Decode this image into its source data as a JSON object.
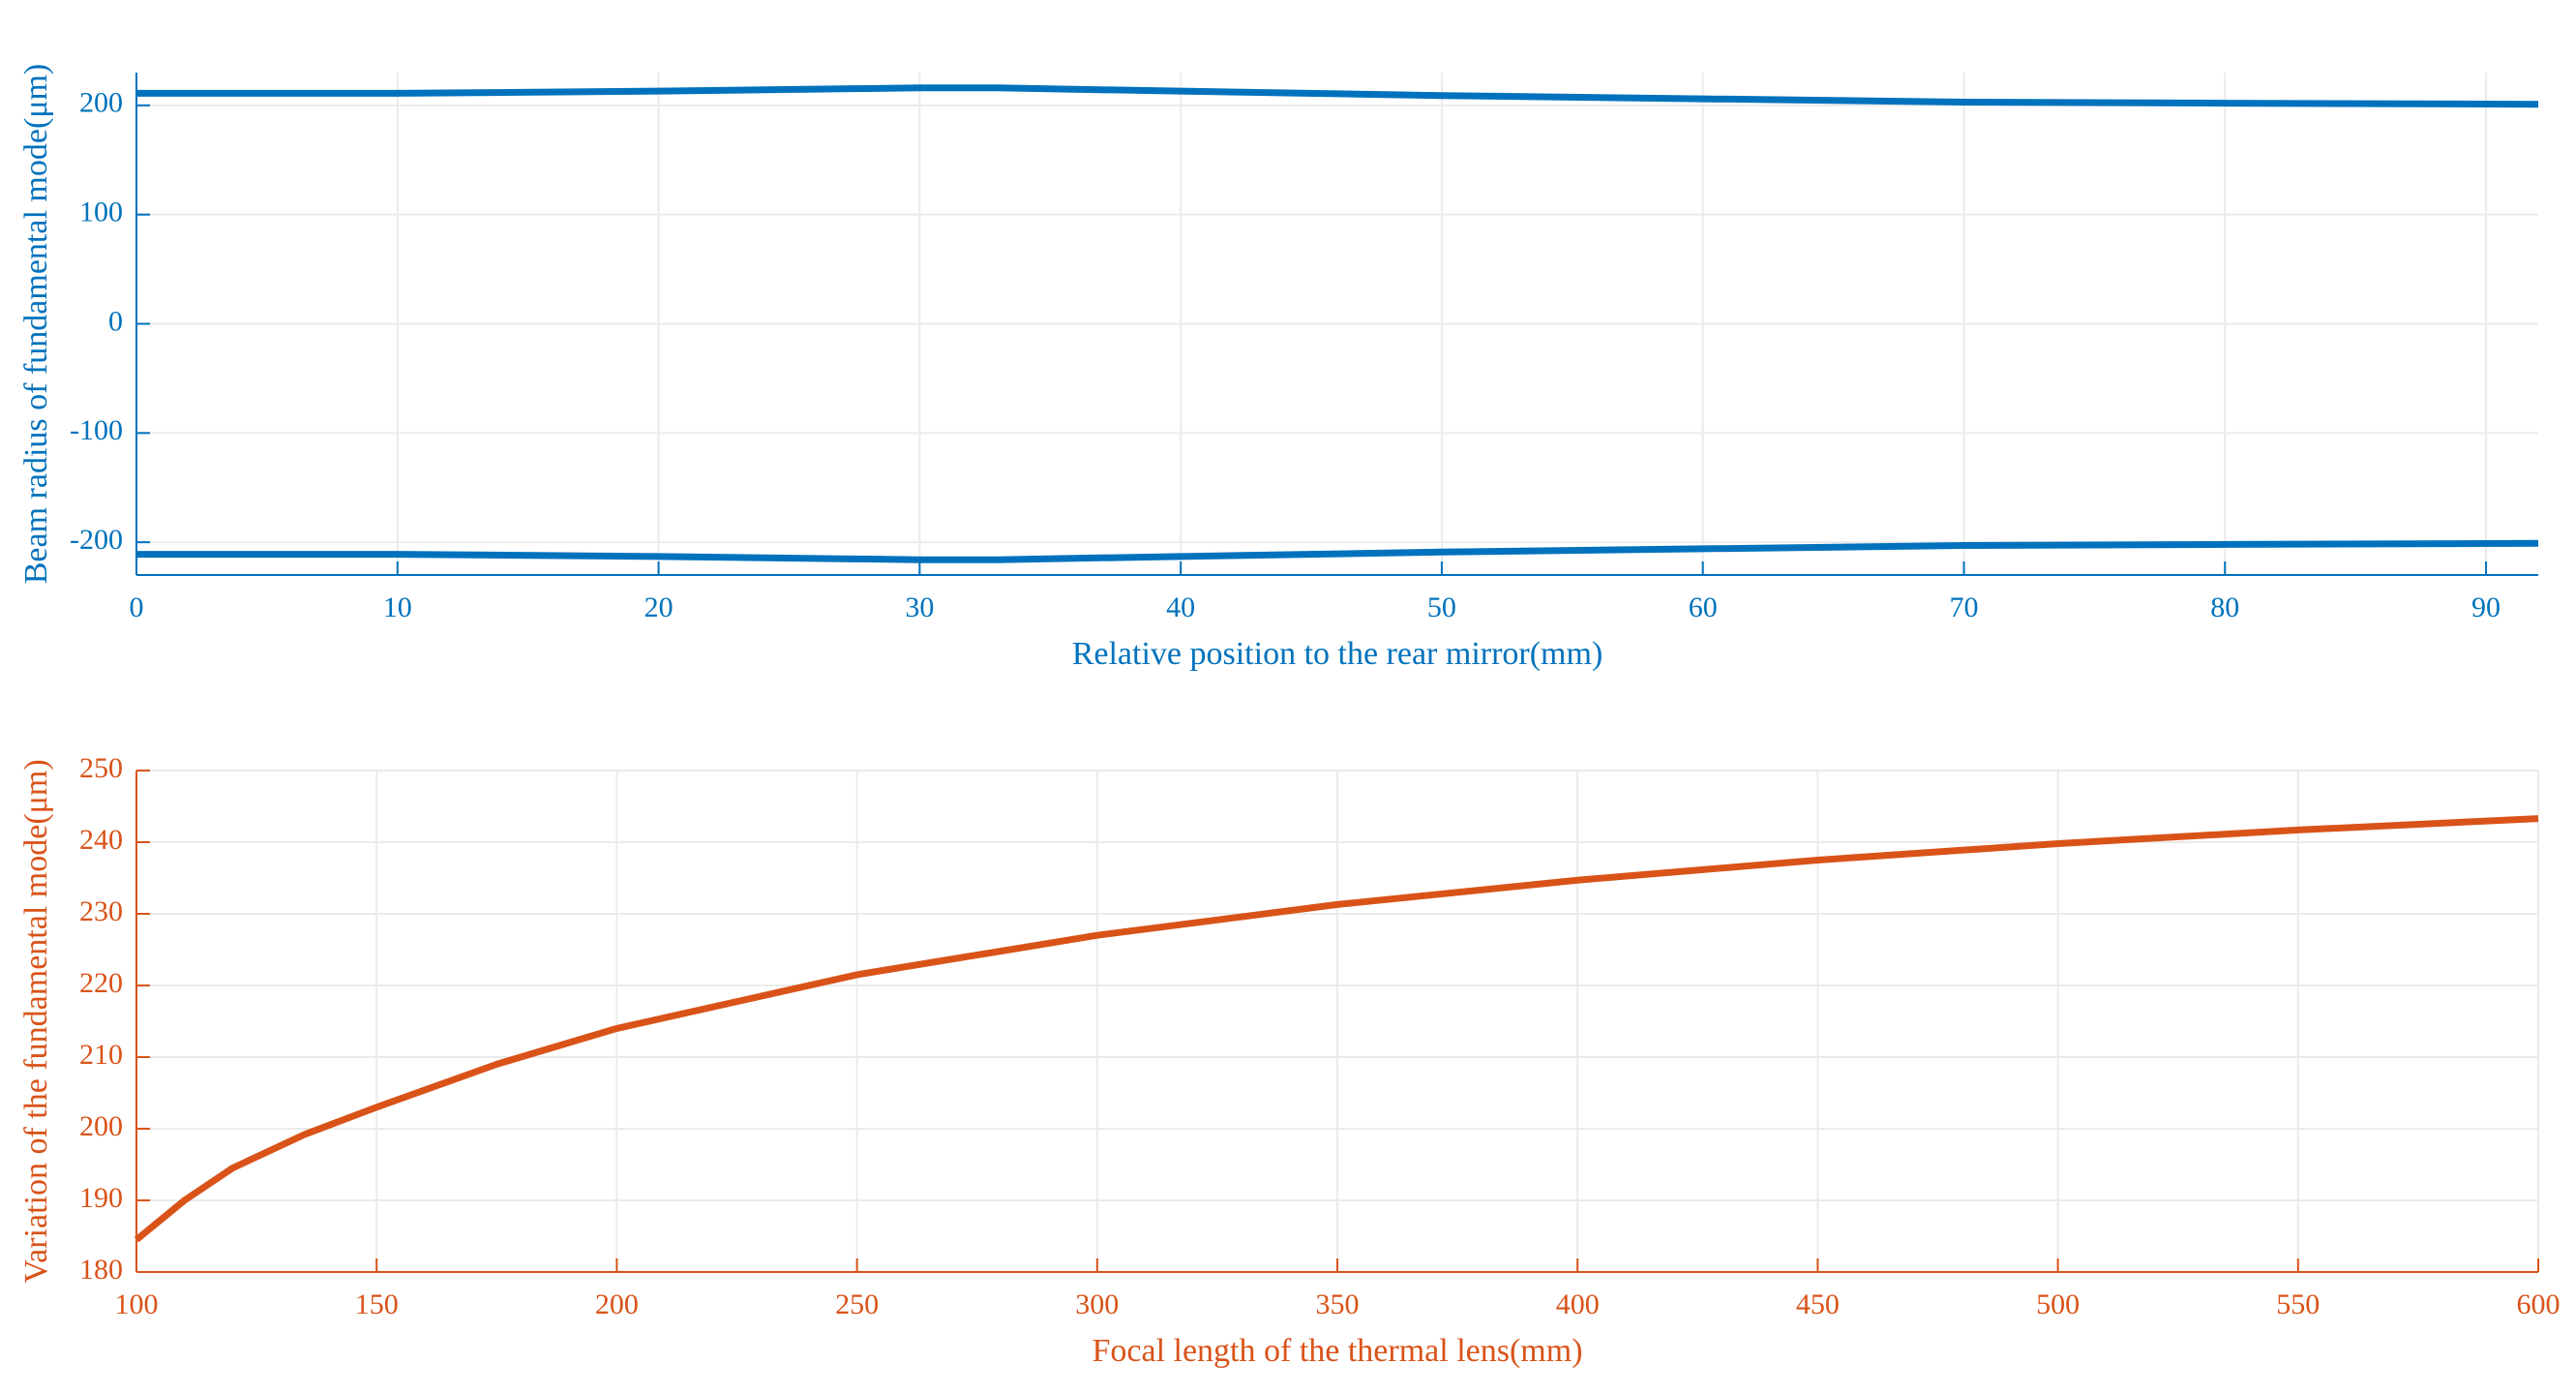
{
  "chart_data": [
    {
      "type": "line",
      "xlabel": "Relative position to the rear mirror(mm)",
      "ylabel": "Beam radius of fundamental mode(μm)",
      "x": [
        0,
        10,
        20,
        30,
        33,
        40,
        50,
        60,
        70,
        80,
        92
      ],
      "series": [
        {
          "color": "#0072bd",
          "values": [
            211,
            211,
            213,
            216,
            216,
            213,
            209,
            206,
            203,
            202,
            201
          ]
        },
        {
          "color": "#0072bd",
          "values": [
            -211,
            -211,
            -213,
            -216,
            -216,
            -213,
            -209,
            -206,
            -203,
            -202,
            -201
          ]
        }
      ],
      "axis_color": "#0072bd",
      "xlim": [
        0,
        92
      ],
      "xticks": [
        0,
        10,
        20,
        30,
        40,
        50,
        60,
        70,
        80,
        90
      ],
      "ylim": [
        -230,
        230
      ],
      "yticks": [
        -200,
        -100,
        0,
        100,
        200
      ],
      "grid": true
    },
    {
      "type": "line",
      "xlabel": "Focal length of the thermal lens(mm)",
      "ylabel": "Variation of the fundamental mode(μm)",
      "x": [
        100,
        110,
        120,
        135,
        150,
        175,
        200,
        250,
        300,
        350,
        400,
        450,
        500,
        550,
        600
      ],
      "series": [
        {
          "color": "#d95319",
          "values": [
            184.5,
            190,
            194.5,
            199.2,
            203,
            209,
            214,
            221.5,
            227,
            231.3,
            234.7,
            237.5,
            239.8,
            241.7,
            243.3
          ]
        }
      ],
      "axis_color": "#d95319",
      "xlim": [
        100,
        600
      ],
      "xticks": [
        100,
        150,
        200,
        250,
        300,
        350,
        400,
        450,
        500,
        550,
        600
      ],
      "ylim": [
        180,
        250
      ],
      "yticks": [
        180,
        190,
        200,
        210,
        220,
        230,
        240,
        250
      ],
      "grid": true
    }
  ]
}
